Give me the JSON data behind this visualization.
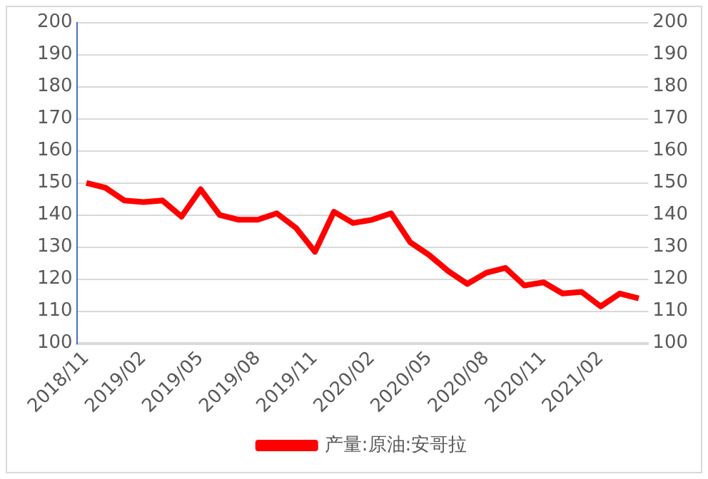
{
  "chart_data": {
    "type": "line",
    "categories": [
      "2018/11",
      null,
      null,
      "2019/02",
      null,
      null,
      "2019/05",
      null,
      null,
      "2019/08",
      null,
      null,
      "2019/11",
      null,
      null,
      "2020/02",
      null,
      null,
      "2020/05",
      null,
      null,
      "2020/08",
      null,
      null,
      "2020/11",
      null,
      null,
      "2021/02",
      null,
      null
    ],
    "series": [
      {
        "name": "产量:原油:安哥拉",
        "color": "#ff0000",
        "values": [
          150,
          148.5,
          144.5,
          144,
          144.5,
          139.5,
          148,
          140,
          138.5,
          138.5,
          140.5,
          136,
          128.5,
          141,
          137.5,
          138.5,
          140.5,
          131.5,
          127.5,
          122.5,
          118.5,
          122,
          123.5,
          118,
          119,
          115.5,
          116,
          111.5,
          115.5,
          114
        ]
      }
    ],
    "ylim": [
      100,
      200
    ],
    "yticks": [
      100,
      110,
      120,
      130,
      140,
      150,
      160,
      170,
      180,
      190,
      200
    ],
    "y2lim": [
      100,
      200
    ],
    "y2ticks": [
      100,
      110,
      120,
      130,
      140,
      150,
      160,
      170,
      180,
      190,
      200
    ],
    "grid": "y",
    "legend": "bottom",
    "marker": "none",
    "line_style": "solid"
  }
}
